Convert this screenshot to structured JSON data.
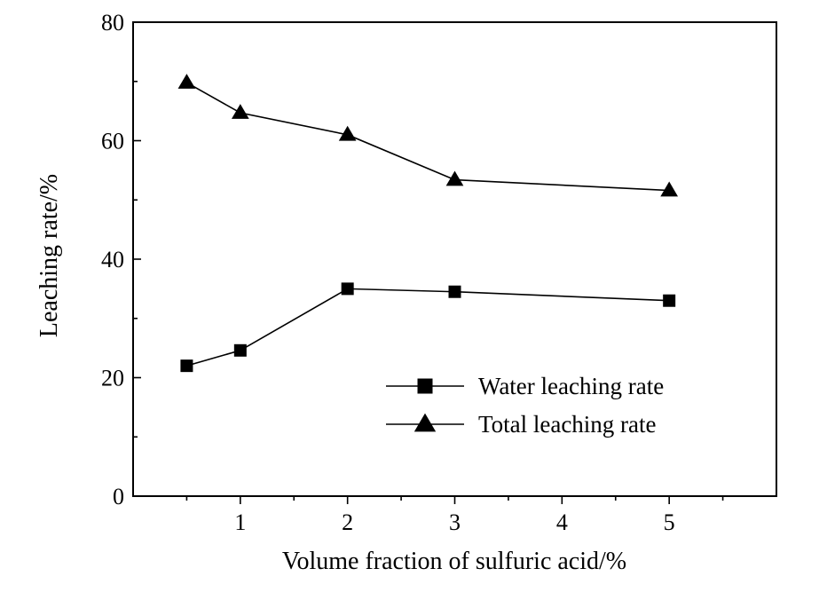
{
  "chart_data": {
    "type": "line",
    "title": "",
    "xlabel": "Volume fraction of sulfuric acid/%",
    "ylabel": "Leaching rate/%",
    "xlim": [
      0,
      6
    ],
    "ylim": [
      0,
      80
    ],
    "x_ticks": [
      1,
      2,
      3,
      4,
      5
    ],
    "y_ticks": [
      0,
      20,
      40,
      60,
      80
    ],
    "grid": false,
    "legend_position": "lower-right",
    "series": [
      {
        "name": "Water leaching rate",
        "marker": "square",
        "x": [
          0.5,
          1,
          2,
          3,
          5
        ],
        "values": [
          22,
          24.6,
          35,
          34.5,
          33
        ]
      },
      {
        "name": "Total leaching rate",
        "marker": "triangle",
        "x": [
          0.5,
          1,
          2,
          3,
          5
        ],
        "values": [
          69.8,
          64.7,
          61,
          53.4,
          51.6
        ]
      }
    ]
  }
}
